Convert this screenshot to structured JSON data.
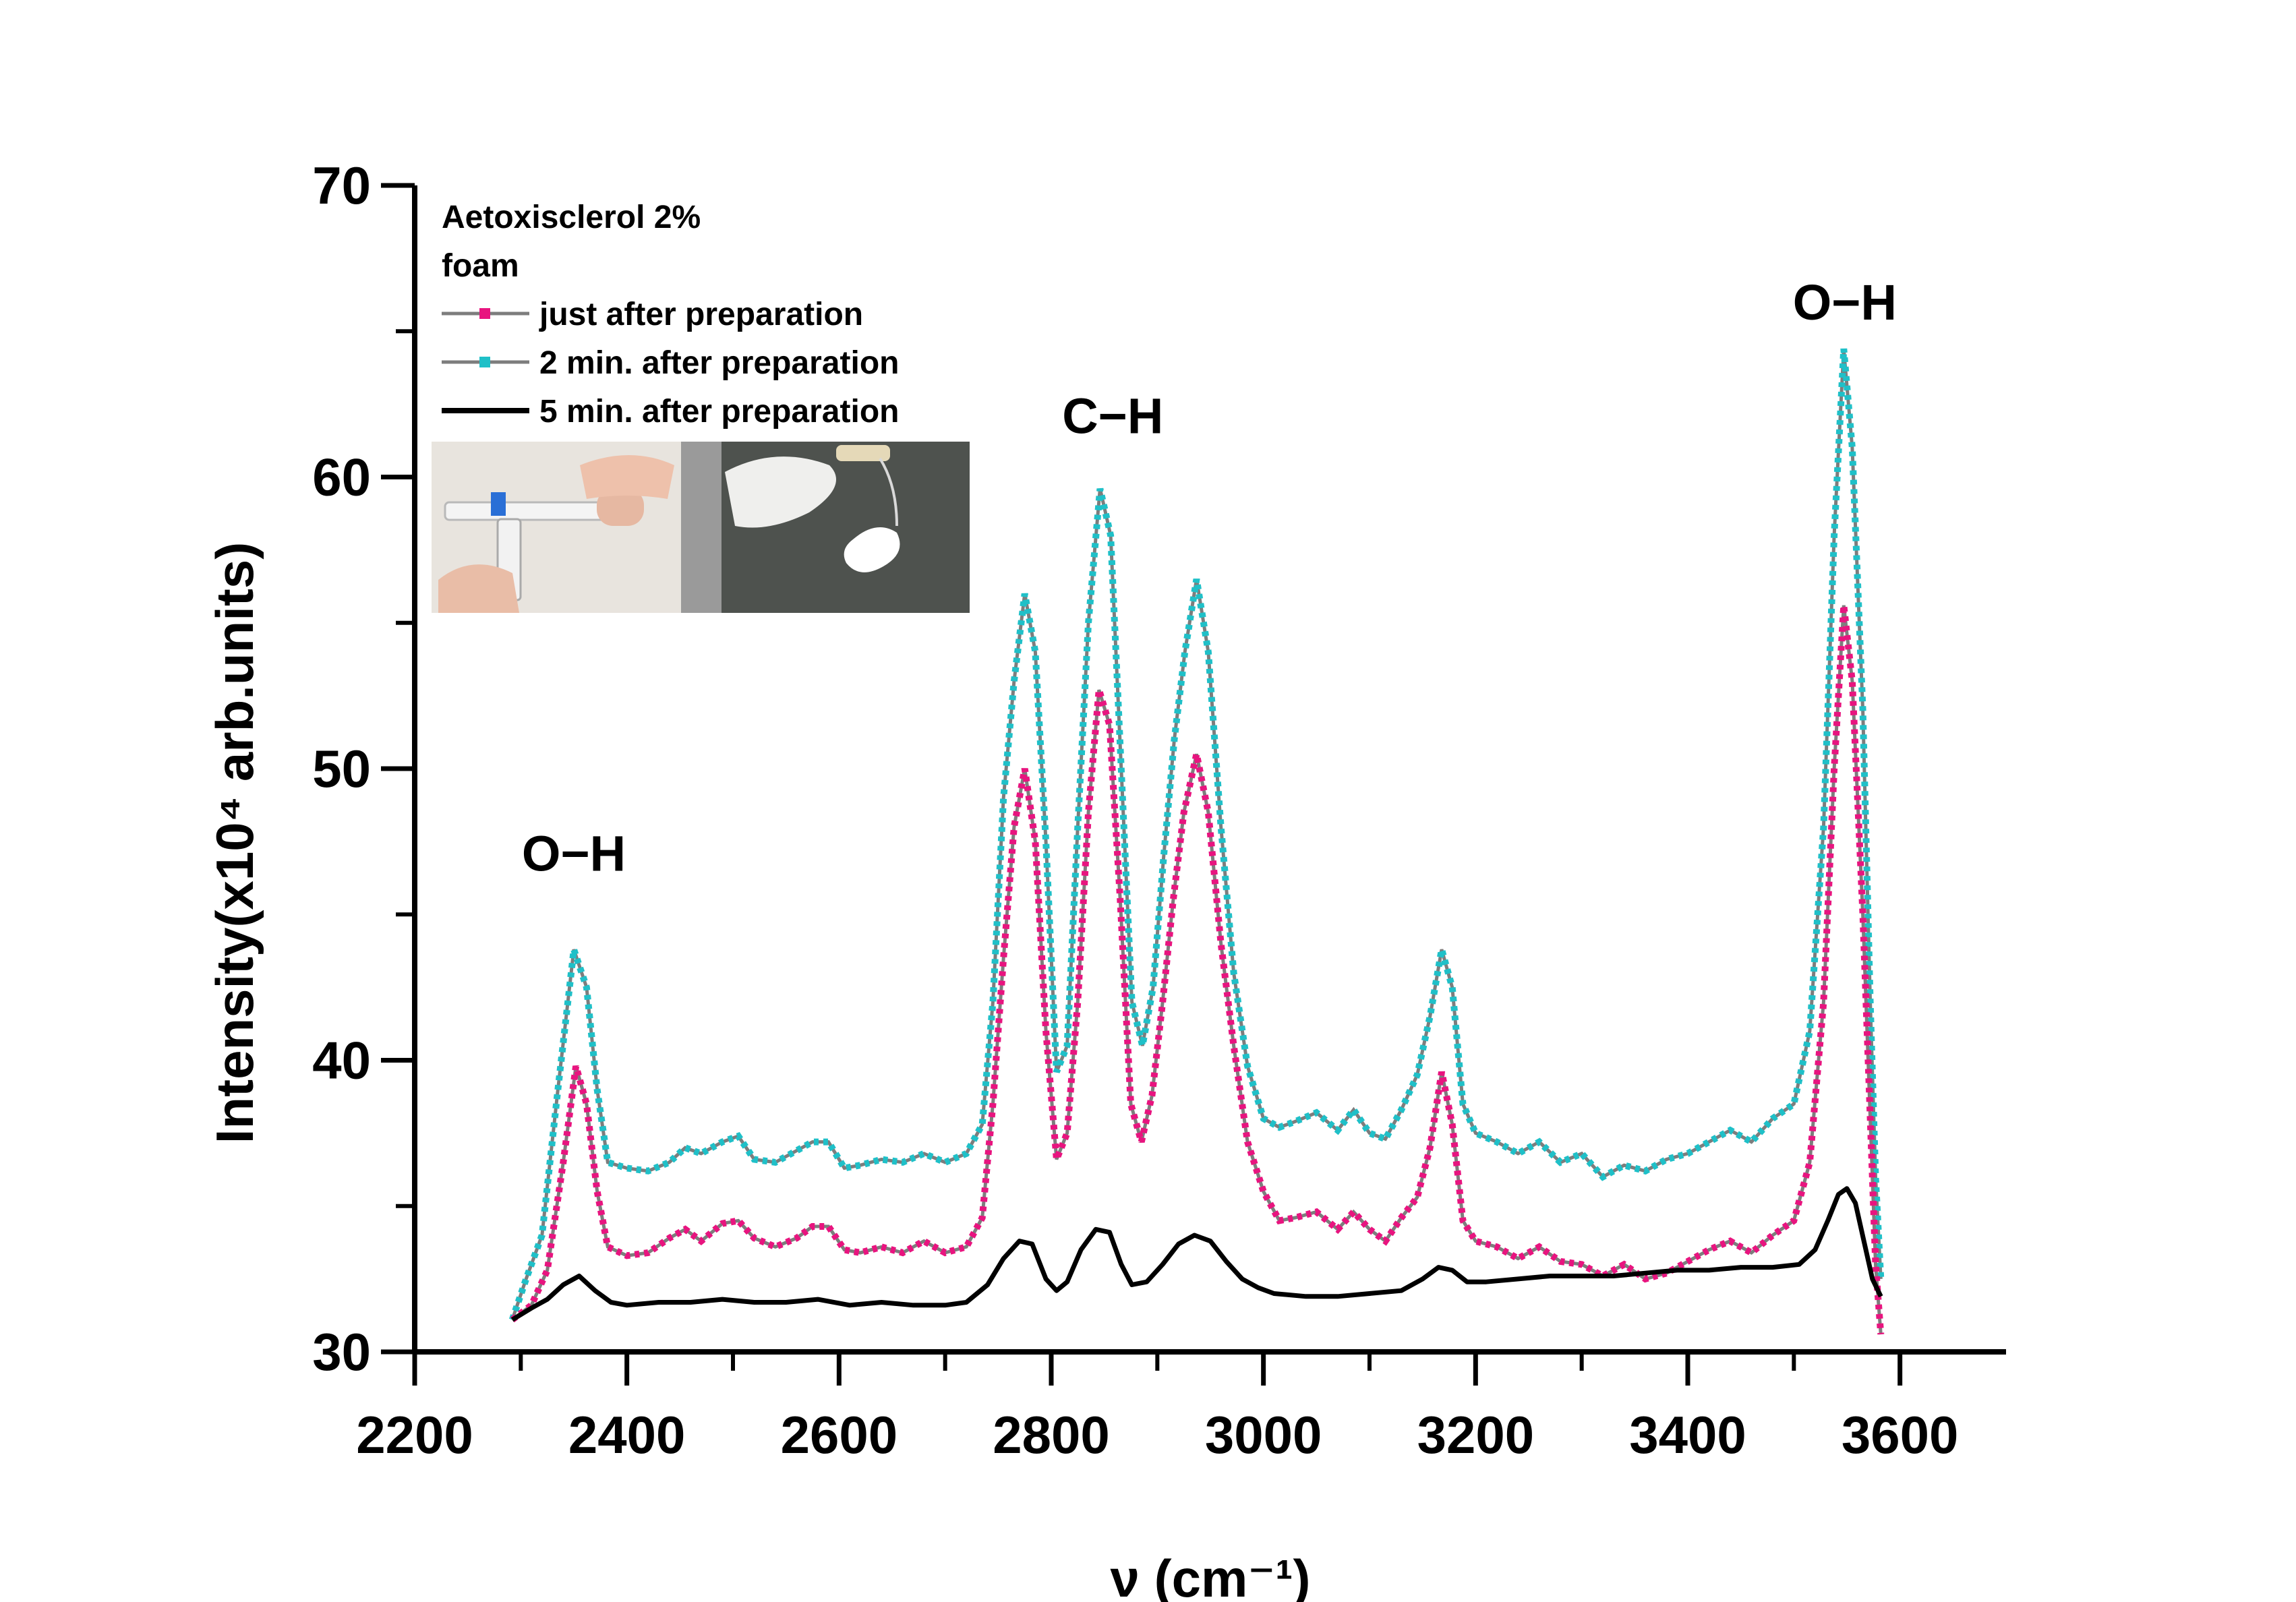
{
  "chart_data": {
    "type": "line",
    "title": "",
    "xlabel": "ν (cm⁻¹)",
    "ylabel": "Intensity(x10⁴ arb.units)",
    "xlim": [
      2200,
      3700
    ],
    "ylim": [
      30,
      70
    ],
    "x_ticks": [
      2200,
      2400,
      2600,
      2800,
      3000,
      3200,
      3400,
      3600
    ],
    "y_ticks": [
      30,
      40,
      50,
      60,
      70
    ],
    "grid": false,
    "legend": {
      "placement": "top-left",
      "title_lines": [
        "Aetoxisclerol 2%",
        "foam"
      ]
    },
    "annotations": [
      {
        "text": "O−H",
        "x": 2350,
        "y": 46.5
      },
      {
        "text": "C−H",
        "x": 2858,
        "y": 61.5
      },
      {
        "text": "O−H",
        "x": 3548,
        "y": 65.4
      }
    ],
    "inset_photo": "syringe foam preparation photo",
    "series": [
      {
        "name": "just after preparation",
        "color": "#e8147f",
        "marker": "square",
        "points": [
          [
            2292,
            31.1
          ],
          [
            2310,
            31.6
          ],
          [
            2325,
            32.8
          ],
          [
            2340,
            36.5
          ],
          [
            2352,
            39.8
          ],
          [
            2362,
            38.5
          ],
          [
            2372,
            35.5
          ],
          [
            2382,
            33.6
          ],
          [
            2400,
            33.3
          ],
          [
            2420,
            33.4
          ],
          [
            2440,
            33.9
          ],
          [
            2455,
            34.2
          ],
          [
            2470,
            33.8
          ],
          [
            2490,
            34.4
          ],
          [
            2505,
            34.5
          ],
          [
            2520,
            33.9
          ],
          [
            2540,
            33.6
          ],
          [
            2560,
            33.9
          ],
          [
            2575,
            34.3
          ],
          [
            2590,
            34.3
          ],
          [
            2605,
            33.5
          ],
          [
            2620,
            33.4
          ],
          [
            2640,
            33.6
          ],
          [
            2660,
            33.4
          ],
          [
            2680,
            33.8
          ],
          [
            2700,
            33.4
          ],
          [
            2720,
            33.6
          ],
          [
            2735,
            34.6
          ],
          [
            2745,
            38.5
          ],
          [
            2755,
            43.5
          ],
          [
            2765,
            48
          ],
          [
            2775,
            50
          ],
          [
            2785,
            47.5
          ],
          [
            2795,
            41
          ],
          [
            2805,
            36.6
          ],
          [
            2815,
            37.5
          ],
          [
            2825,
            42
          ],
          [
            2835,
            48.5
          ],
          [
            2845,
            52.7
          ],
          [
            2855,
            51.5
          ],
          [
            2865,
            45.5
          ],
          [
            2875,
            38.5
          ],
          [
            2885,
            37.2
          ],
          [
            2895,
            38.8
          ],
          [
            2905,
            42
          ],
          [
            2915,
            45.5
          ],
          [
            2925,
            48.5
          ],
          [
            2937,
            50.5
          ],
          [
            2948,
            48.5
          ],
          [
            2960,
            44
          ],
          [
            2972,
            40.5
          ],
          [
            2985,
            37.2
          ],
          [
            3000,
            35.5
          ],
          [
            3015,
            34.5
          ],
          [
            3030,
            34.6
          ],
          [
            3050,
            34.8
          ],
          [
            3070,
            34.2
          ],
          [
            3085,
            34.8
          ],
          [
            3100,
            34.2
          ],
          [
            3115,
            33.8
          ],
          [
            3130,
            34.6
          ],
          [
            3145,
            35.3
          ],
          [
            3157,
            37
          ],
          [
            3168,
            39.6
          ],
          [
            3178,
            37.8
          ],
          [
            3188,
            34.5
          ],
          [
            3200,
            33.8
          ],
          [
            3220,
            33.6
          ],
          [
            3240,
            33.2
          ],
          [
            3260,
            33.6
          ],
          [
            3280,
            33.1
          ],
          [
            3300,
            33
          ],
          [
            3320,
            32.6
          ],
          [
            3340,
            33
          ],
          [
            3360,
            32.5
          ],
          [
            3380,
            32.7
          ],
          [
            3400,
            33.1
          ],
          [
            3420,
            33.5
          ],
          [
            3440,
            33.8
          ],
          [
            3460,
            33.4
          ],
          [
            3480,
            34
          ],
          [
            3500,
            34.5
          ],
          [
            3515,
            36.5
          ],
          [
            3528,
            42
          ],
          [
            3538,
            50
          ],
          [
            3547,
            55.6
          ],
          [
            3555,
            53
          ],
          [
            3565,
            45
          ],
          [
            3572,
            38
          ],
          [
            3577,
            33
          ],
          [
            3582,
            30.6
          ]
        ]
      },
      {
        "name": "2 min. after preparation",
        "color": "#1fc0c8",
        "marker": "square",
        "points": [
          [
            2292,
            31.1
          ],
          [
            2305,
            32.5
          ],
          [
            2320,
            34
          ],
          [
            2335,
            39
          ],
          [
            2350,
            43.8
          ],
          [
            2362,
            42.5
          ],
          [
            2372,
            39
          ],
          [
            2382,
            36.5
          ],
          [
            2400,
            36.3
          ],
          [
            2420,
            36.2
          ],
          [
            2440,
            36.5
          ],
          [
            2455,
            37
          ],
          [
            2470,
            36.8
          ],
          [
            2490,
            37.2
          ],
          [
            2505,
            37.4
          ],
          [
            2520,
            36.6
          ],
          [
            2540,
            36.5
          ],
          [
            2560,
            36.9
          ],
          [
            2575,
            37.2
          ],
          [
            2590,
            37.2
          ],
          [
            2605,
            36.3
          ],
          [
            2620,
            36.4
          ],
          [
            2640,
            36.6
          ],
          [
            2660,
            36.5
          ],
          [
            2680,
            36.8
          ],
          [
            2700,
            36.5
          ],
          [
            2720,
            36.8
          ],
          [
            2735,
            37.8
          ],
          [
            2745,
            42
          ],
          [
            2755,
            49
          ],
          [
            2765,
            53
          ],
          [
            2775,
            56
          ],
          [
            2785,
            54
          ],
          [
            2795,
            47.5
          ],
          [
            2805,
            39.6
          ],
          [
            2815,
            40.5
          ],
          [
            2825,
            48
          ],
          [
            2835,
            55
          ],
          [
            2846,
            59.6
          ],
          [
            2856,
            58
          ],
          [
            2866,
            50
          ],
          [
            2876,
            42
          ],
          [
            2886,
            40.5
          ],
          [
            2896,
            42.5
          ],
          [
            2906,
            47
          ],
          [
            2916,
            51
          ],
          [
            2926,
            54
          ],
          [
            2937,
            56.5
          ],
          [
            2948,
            54
          ],
          [
            2960,
            48
          ],
          [
            2972,
            43
          ],
          [
            2985,
            39.8
          ],
          [
            3000,
            38
          ],
          [
            3015,
            37.7
          ],
          [
            3030,
            37.9
          ],
          [
            3050,
            38.2
          ],
          [
            3070,
            37.6
          ],
          [
            3085,
            38.3
          ],
          [
            3100,
            37.5
          ],
          [
            3115,
            37.3
          ],
          [
            3130,
            38.3
          ],
          [
            3145,
            39.5
          ],
          [
            3157,
            41.5
          ],
          [
            3168,
            43.8
          ],
          [
            3178,
            42.5
          ],
          [
            3188,
            38.5
          ],
          [
            3200,
            37.5
          ],
          [
            3220,
            37.2
          ],
          [
            3240,
            36.8
          ],
          [
            3260,
            37.2
          ],
          [
            3280,
            36.5
          ],
          [
            3300,
            36.8
          ],
          [
            3320,
            36
          ],
          [
            3340,
            36.4
          ],
          [
            3360,
            36.2
          ],
          [
            3380,
            36.6
          ],
          [
            3400,
            36.8
          ],
          [
            3420,
            37.2
          ],
          [
            3440,
            37.6
          ],
          [
            3460,
            37.2
          ],
          [
            3480,
            38
          ],
          [
            3500,
            38.5
          ],
          [
            3515,
            41
          ],
          [
            3528,
            48
          ],
          [
            3538,
            58
          ],
          [
            3547,
            64.4
          ],
          [
            3555,
            61
          ],
          [
            3565,
            52
          ],
          [
            3572,
            42
          ],
          [
            3577,
            36
          ],
          [
            3582,
            32.5
          ]
        ]
      },
      {
        "name": "5 min. after preparation",
        "color": "#000000",
        "marker": "none",
        "points": [
          [
            2292,
            31.1
          ],
          [
            2310,
            31.5
          ],
          [
            2325,
            31.8
          ],
          [
            2340,
            32.3
          ],
          [
            2355,
            32.6
          ],
          [
            2370,
            32.1
          ],
          [
            2385,
            31.7
          ],
          [
            2400,
            31.6
          ],
          [
            2430,
            31.7
          ],
          [
            2460,
            31.7
          ],
          [
            2490,
            31.8
          ],
          [
            2520,
            31.7
          ],
          [
            2550,
            31.7
          ],
          [
            2580,
            31.8
          ],
          [
            2610,
            31.6
          ],
          [
            2640,
            31.7
          ],
          [
            2670,
            31.6
          ],
          [
            2700,
            31.6
          ],
          [
            2720,
            31.7
          ],
          [
            2740,
            32.3
          ],
          [
            2755,
            33.2
          ],
          [
            2770,
            33.8
          ],
          [
            2782,
            33.7
          ],
          [
            2795,
            32.5
          ],
          [
            2805,
            32.1
          ],
          [
            2815,
            32.4
          ],
          [
            2828,
            33.5
          ],
          [
            2842,
            34.2
          ],
          [
            2855,
            34.1
          ],
          [
            2866,
            33
          ],
          [
            2876,
            32.3
          ],
          [
            2890,
            32.4
          ],
          [
            2905,
            33
          ],
          [
            2920,
            33.7
          ],
          [
            2935,
            34
          ],
          [
            2950,
            33.8
          ],
          [
            2965,
            33.1
          ],
          [
            2980,
            32.5
          ],
          [
            2995,
            32.2
          ],
          [
            3010,
            32
          ],
          [
            3040,
            31.9
          ],
          [
            3070,
            31.9
          ],
          [
            3100,
            32
          ],
          [
            3130,
            32.1
          ],
          [
            3150,
            32.5
          ],
          [
            3165,
            32.9
          ],
          [
            3178,
            32.8
          ],
          [
            3192,
            32.4
          ],
          [
            3210,
            32.4
          ],
          [
            3240,
            32.5
          ],
          [
            3270,
            32.6
          ],
          [
            3300,
            32.6
          ],
          [
            3330,
            32.6
          ],
          [
            3360,
            32.7
          ],
          [
            3390,
            32.8
          ],
          [
            3420,
            32.8
          ],
          [
            3450,
            32.9
          ],
          [
            3480,
            32.9
          ],
          [
            3505,
            33
          ],
          [
            3520,
            33.5
          ],
          [
            3532,
            34.5
          ],
          [
            3542,
            35.4
          ],
          [
            3550,
            35.6
          ],
          [
            3558,
            35.1
          ],
          [
            3566,
            33.8
          ],
          [
            3574,
            32.5
          ],
          [
            3582,
            31.9
          ]
        ]
      }
    ]
  }
}
